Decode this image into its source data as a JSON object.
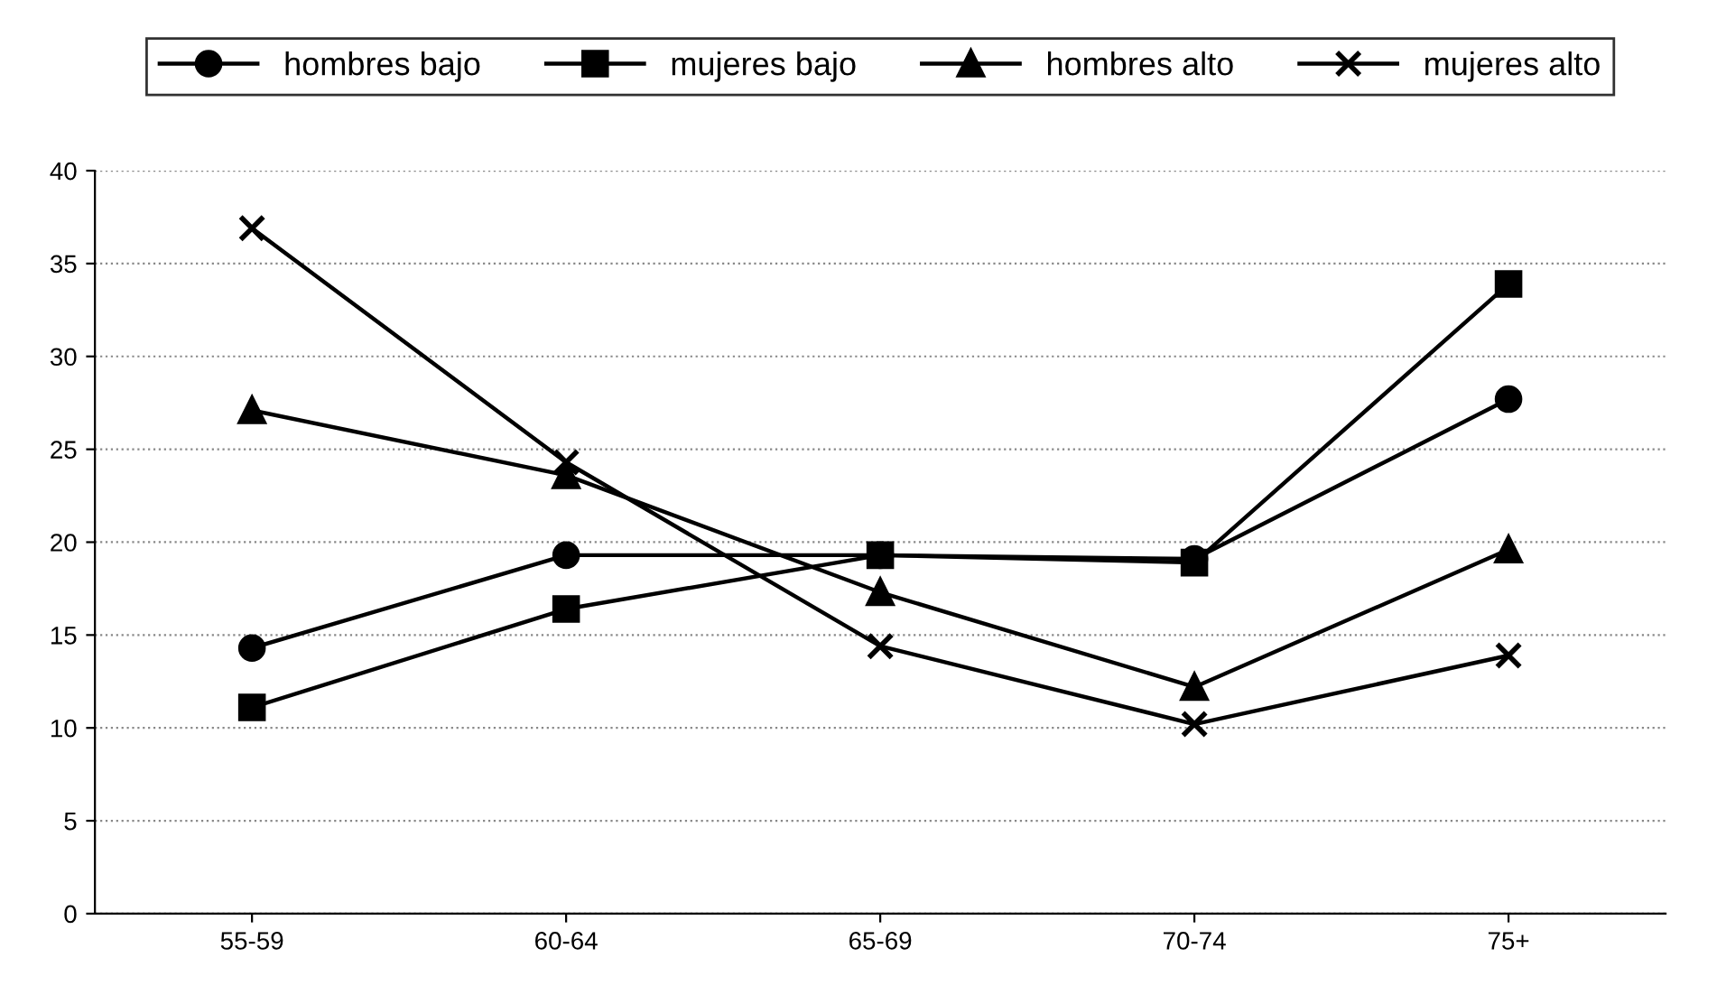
{
  "chart_data": {
    "type": "line",
    "categories": [
      "55-59",
      "60-64",
      "65-69",
      "70-74",
      "75+"
    ],
    "series": [
      {
        "name": "hombres bajo",
        "color": "#000000",
        "marker": "circle",
        "values": [
          14.3,
          19.3,
          19.3,
          19.1,
          27.7
        ]
      },
      {
        "name": "mujeres bajo",
        "color": "#000000",
        "marker": "square",
        "values": [
          11.1,
          16.4,
          19.3,
          18.9,
          33.9
        ]
      },
      {
        "name": "hombres alto",
        "color": "#000000",
        "marker": "triangle",
        "values": [
          27.1,
          23.6,
          17.3,
          12.2,
          19.6
        ]
      },
      {
        "name": "mujeres alto",
        "color": "#000000",
        "marker": "cross",
        "values": [
          36.9,
          24.3,
          14.4,
          10.2,
          13.9
        ]
      }
    ],
    "ylim": [
      0,
      40
    ],
    "yticks": [
      0,
      5,
      10,
      15,
      20,
      25,
      30,
      35,
      40
    ],
    "grid": "y",
    "legend": "top",
    "line_style": "solid"
  }
}
